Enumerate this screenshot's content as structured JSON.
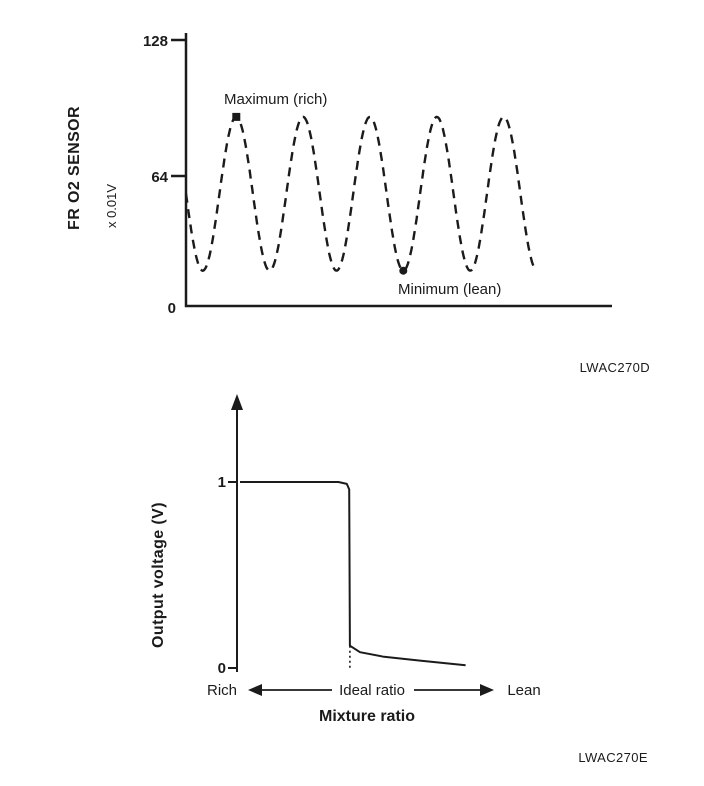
{
  "page": {
    "background": "#ffffff",
    "ink": "#1b1b1b"
  },
  "chart_data": [
    {
      "id": "fr-o2-sensor",
      "type": "line",
      "line_style": "dashed",
      "ylabel": "FR O2 SENSOR",
      "ylabel_units": "x 0.01V",
      "yticks": [
        0,
        64,
        128
      ],
      "ylim": [
        0,
        128
      ],
      "caption": "LWAC270D",
      "annotations": {
        "max": {
          "label": "Maximum (rich)",
          "x_frac": 0.118,
          "value": 91
        },
        "min": {
          "label": "Minimum (lean)",
          "x_frac": 0.51,
          "value": 17
        }
      },
      "wave": {
        "min": 17,
        "max": 91,
        "cycles_visible": 5,
        "period_frac": 0.157,
        "start_phase_deg": 180,
        "x_end_frac": 0.82
      }
    },
    {
      "id": "output-voltage-vs-mixture",
      "type": "line",
      "line_style": "solid",
      "ylabel": "Output voltage (V)",
      "xlabel": "Mixture ratio",
      "yticks": [
        0,
        1
      ],
      "ylim": [
        0,
        1
      ],
      "x_annotations": {
        "left": "Rich",
        "center": "Ideal ratio",
        "right": "Lean"
      },
      "caption": "LWAC270E",
      "curve_points": [
        [
          0,
          1.0
        ],
        [
          0.41,
          1.0
        ],
        [
          0.445,
          0.99
        ],
        [
          0.455,
          0.96
        ],
        [
          0.458,
          0.12
        ],
        [
          0.5,
          0.085
        ],
        [
          0.6,
          0.06
        ],
        [
          0.75,
          0.04
        ],
        [
          0.94,
          0.015
        ]
      ],
      "drop_x_frac": 0.458,
      "drop_top_value": 0.12
    }
  ]
}
